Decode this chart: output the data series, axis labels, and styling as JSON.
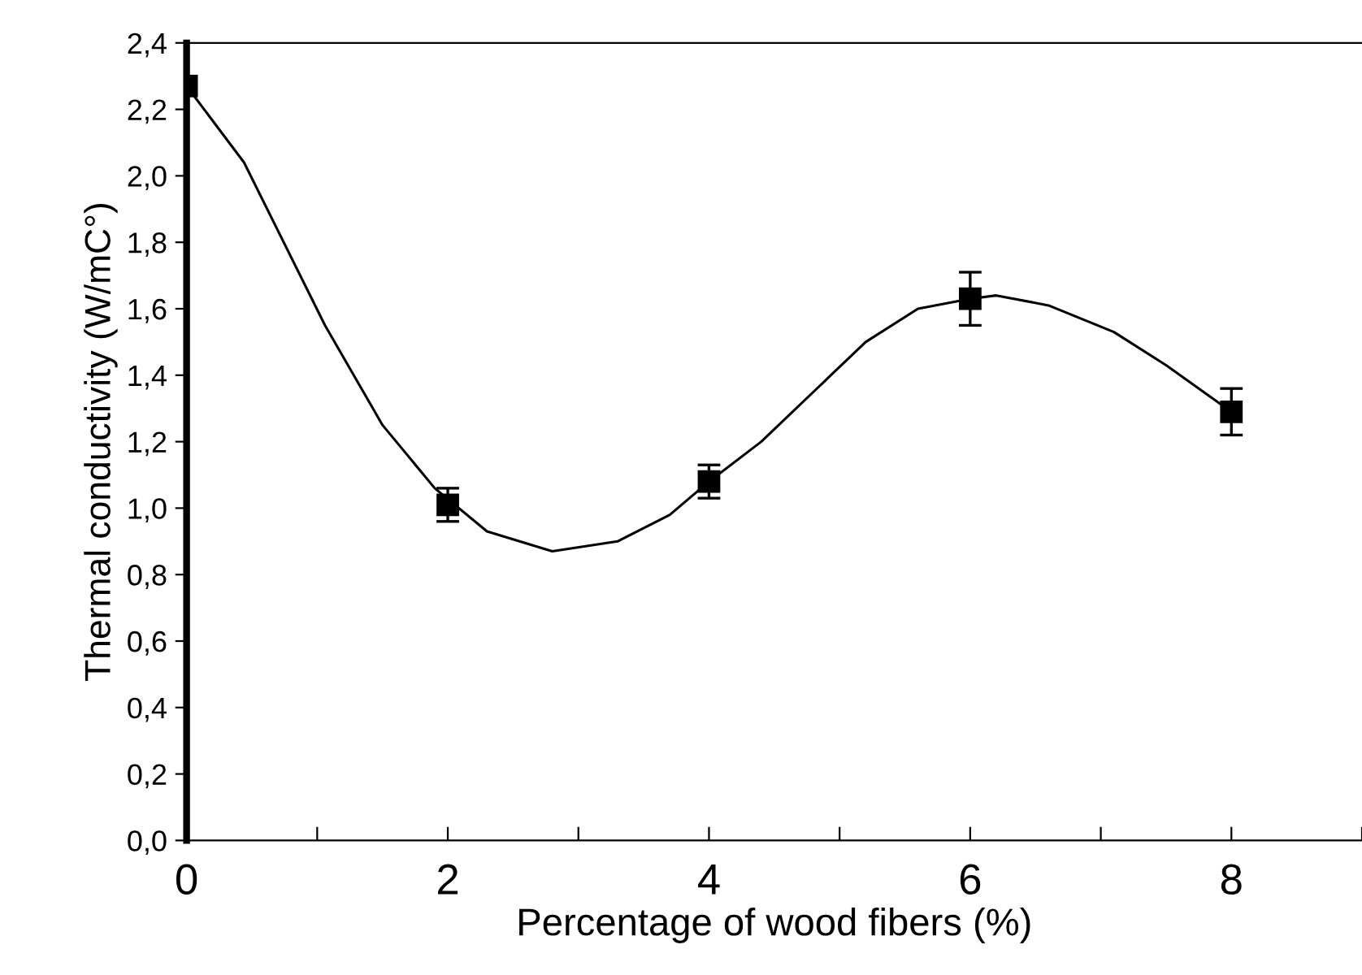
{
  "chart_data": {
    "type": "scatter",
    "xlabel": "Percentage of wood fibers (%)",
    "ylabel": "Thermal conductivity (W/mC°)",
    "xlim": [
      0,
      9
    ],
    "ylim": [
      0,
      2.4
    ],
    "xticks": [
      0,
      {
        "value": 1,
        "label": null
      },
      2,
      {
        "value": 3,
        "label": null
      },
      4,
      {
        "value": 5,
        "label": null
      },
      6,
      {
        "value": 7,
        "label": null
      },
      8,
      {
        "value": 9,
        "label": null
      }
    ],
    "yticks": [
      {
        "value": 0,
        "label": "0,0"
      },
      {
        "value": 0.2,
        "label": "0,2"
      },
      {
        "value": 0.4,
        "label": "0,4"
      },
      {
        "value": 0.6,
        "label": "0,6"
      },
      {
        "value": 0.8,
        "label": "0,8"
      },
      {
        "value": 1.0,
        "label": "1,0"
      },
      {
        "value": 1.2,
        "label": "1,2"
      },
      {
        "value": 1.4,
        "label": "1,4"
      },
      {
        "value": 1.6,
        "label": "1,6"
      },
      {
        "value": 1.8,
        "label": "1,8"
      },
      {
        "value": 2.0,
        "label": "2,0"
      },
      {
        "value": 2.2,
        "label": "2,2"
      },
      {
        "value": 2.4,
        "label": "2,4"
      }
    ],
    "grid": false,
    "legend": false,
    "series": [
      {
        "type": "line",
        "color": "#000000",
        "marker": "none",
        "x": [
          0,
          0.44,
          1.06,
          1.5,
          1.9,
          2.3,
          2.8,
          3.3,
          3.7,
          4,
          4.4,
          4.8,
          5.2,
          5.6,
          6,
          6.2,
          6.6,
          7.1,
          7.5,
          8
        ],
        "values": [
          2.27,
          2.04,
          1.55,
          1.25,
          1.06,
          0.93,
          0.87,
          0.9,
          0.98,
          1.08,
          1.2,
          1.35,
          1.5,
          1.6,
          1.63,
          1.64,
          1.61,
          1.53,
          1.43,
          1.29
        ]
      },
      {
        "color": "#000000",
        "marker": "square",
        "x": [
          0,
          2,
          4,
          6,
          8
        ],
        "values": [
          2.27,
          1.01,
          1.08,
          1.63,
          1.29
        ],
        "errors": [
          null,
          0.05,
          0.05,
          0.08,
          0.07
        ]
      }
    ]
  }
}
